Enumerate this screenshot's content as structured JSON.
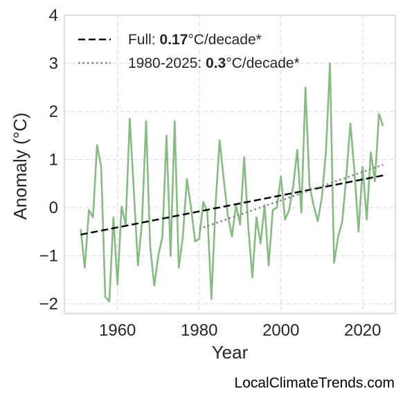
{
  "chart_data": {
    "type": "line",
    "xlabel": "Year",
    "ylabel": "Anomaly (°C)",
    "xlim": [
      1947,
      2028
    ],
    "ylim": [
      -2.2,
      4.0
    ],
    "xticks": [
      1960,
      1980,
      2000,
      2020
    ],
    "xtick_labels": [
      "1960",
      "1980",
      "2000",
      "2020"
    ],
    "yticks": [
      -2,
      -1,
      0,
      1,
      2,
      3,
      4
    ],
    "ytick_labels": [
      "−2",
      "−1",
      "0",
      "1",
      "2",
      "3",
      "4"
    ],
    "grid": true,
    "legend_position": "top-left",
    "series": [
      {
        "style": "solid",
        "color": "#86bb81",
        "x": [
          1951,
          1952,
          1953,
          1954,
          1955,
          1956,
          1957,
          1958,
          1959,
          1960,
          1961,
          1962,
          1963,
          1964,
          1965,
          1966,
          1967,
          1968,
          1969,
          1970,
          1971,
          1972,
          1973,
          1974,
          1975,
          1976,
          1977,
          1978,
          1979,
          1980,
          1981,
          1982,
          1983,
          1984,
          1985,
          1986,
          1987,
          1988,
          1989,
          1990,
          1991,
          1992,
          1993,
          1994,
          1995,
          1996,
          1997,
          1998,
          1999,
          2000,
          2001,
          2002,
          2003,
          2004,
          2005,
          2006,
          2007,
          2008,
          2009,
          2010,
          2011,
          2012,
          2013,
          2014,
          2015,
          2016,
          2017,
          2018,
          2019,
          2020,
          2021,
          2022,
          2023,
          2024,
          2025
        ],
        "values": [
          -0.45,
          -1.25,
          -0.05,
          -0.2,
          1.3,
          0.85,
          -1.85,
          -1.95,
          -0.2,
          -1.6,
          0.02,
          -0.35,
          1.85,
          0.35,
          -1.2,
          -0.3,
          1.8,
          -0.8,
          -1.62,
          -1.0,
          -0.6,
          1.5,
          -1.0,
          1.8,
          -1.25,
          -0.6,
          0.6,
          0.0,
          -0.7,
          -0.65,
          0.12,
          -0.1,
          -1.9,
          0.05,
          1.4,
          0.6,
          -0.15,
          -0.6,
          0.05,
          -0.35,
          1.05,
          -0.4,
          -1.45,
          -0.2,
          -0.75,
          0.05,
          -1.2,
          -0.05,
          0.0,
          0.65,
          -0.25,
          -0.05,
          0.45,
          1.2,
          -0.1,
          2.5,
          0.45,
          0.05,
          -0.28,
          0.2,
          1.15,
          3.0,
          -1.15,
          -0.6,
          -0.3,
          0.65,
          1.75,
          0.75,
          -0.5,
          0.85,
          -0.25,
          1.15,
          0.55,
          1.95,
          1.7
        ]
      },
      {
        "style": "dashed",
        "color": "#000000",
        "x": [
          1951,
          2025
        ],
        "values": [
          -0.56,
          0.67
        ]
      },
      {
        "style": "dotted",
        "color": "#808080",
        "x": [
          1980,
          2025
        ],
        "values": [
          -0.44,
          0.89
        ]
      }
    ]
  },
  "legend": {
    "items": [
      {
        "prefix": "Full: ",
        "bold": "0.17",
        "suffix": "°C/decade*"
      },
      {
        "prefix": "1980-2025: ",
        "bold": "0.3",
        "suffix": "°C/decade*"
      }
    ]
  },
  "credit": "LocalClimateTrends.com"
}
